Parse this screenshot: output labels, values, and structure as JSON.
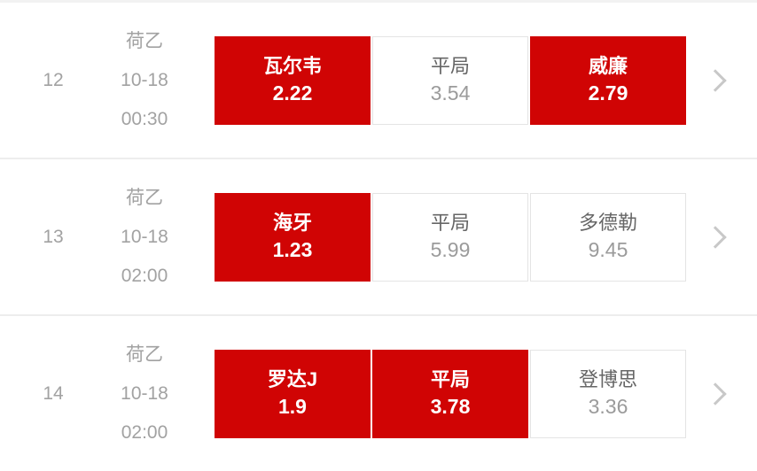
{
  "theme": {
    "accent_red": "#d00404",
    "muted_text": "#a2a2a2",
    "label_text": "#666666",
    "value_text": "#9b9b9b",
    "border": "#e4e4e4",
    "divider": "#ededed",
    "chevron": "#c8c8c8"
  },
  "rows": [
    {
      "id": "12",
      "league": "荷乙",
      "date": "10-18",
      "time": "00:30",
      "odds": [
        {
          "label": "瓦尔韦",
          "value": "2.22",
          "selected": true
        },
        {
          "label": "平局",
          "value": "3.54",
          "selected": false
        },
        {
          "label": "威廉",
          "value": "2.79",
          "selected": true
        }
      ]
    },
    {
      "id": "13",
      "league": "荷乙",
      "date": "10-18",
      "time": "02:00",
      "odds": [
        {
          "label": "海牙",
          "value": "1.23",
          "selected": true
        },
        {
          "label": "平局",
          "value": "5.99",
          "selected": false
        },
        {
          "label": "多德勒",
          "value": "9.45",
          "selected": false
        }
      ]
    },
    {
      "id": "14",
      "league": "荷乙",
      "date": "10-18",
      "time": "02:00",
      "odds": [
        {
          "label": "罗达J",
          "value": "1.9",
          "selected": true
        },
        {
          "label": "平局",
          "value": "3.78",
          "selected": true
        },
        {
          "label": "登博思",
          "value": "3.36",
          "selected": false
        }
      ]
    }
  ]
}
